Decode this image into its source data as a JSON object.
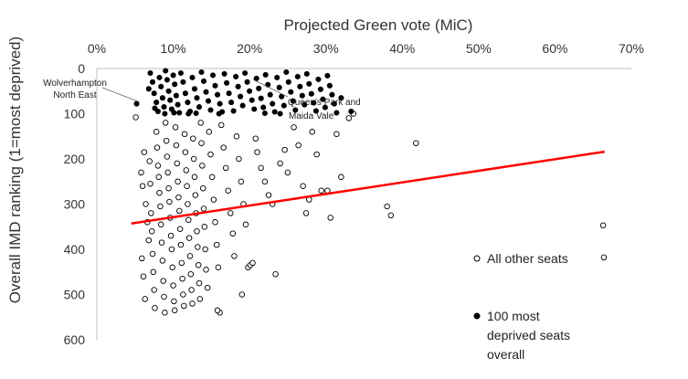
{
  "chart_data": {
    "type": "scatter",
    "title": "Projected Green vote (MiC)",
    "xlabel": "Projected Green vote (MiC)",
    "ylabel": "Overall IMD ranking (1=most deprived)",
    "x_axis_position": "top",
    "y_axis_inverted": true,
    "xlim": [
      0,
      70
    ],
    "ylim": [
      0,
      600
    ],
    "x_ticks": [
      0,
      10,
      20,
      30,
      40,
      50,
      60,
      70
    ],
    "x_tick_labels": [
      "0%",
      "10%",
      "20%",
      "30%",
      "40%",
      "50%",
      "60%",
      "70%"
    ],
    "y_ticks": [
      0,
      100,
      200,
      300,
      400,
      500,
      600
    ],
    "y_tick_labels": [
      "0",
      "100",
      "200",
      "300",
      "400",
      "500",
      "600"
    ],
    "legend_position": "right",
    "series": [
      {
        "name": "All other seats",
        "marker": "open-circle",
        "points": [
          [
            5.1,
            108
          ],
          [
            5.8,
            230
          ],
          [
            6.0,
            260
          ],
          [
            6.2,
            185
          ],
          [
            6.4,
            300
          ],
          [
            6.6,
            340
          ],
          [
            6.8,
            380
          ],
          [
            5.9,
            420
          ],
          [
            6.1,
            460
          ],
          [
            6.3,
            510
          ],
          [
            6.9,
            205
          ],
          [
            7.0,
            255
          ],
          [
            7.1,
            320
          ],
          [
            7.2,
            360
          ],
          [
            7.3,
            410
          ],
          [
            7.4,
            450
          ],
          [
            7.5,
            490
          ],
          [
            7.6,
            530
          ],
          [
            7.8,
            140
          ],
          [
            7.9,
            175
          ],
          [
            8.0,
            215
          ],
          [
            8.1,
            240
          ],
          [
            8.2,
            275
          ],
          [
            8.3,
            305
          ],
          [
            8.4,
            345
          ],
          [
            8.5,
            385
          ],
          [
            8.6,
            425
          ],
          [
            8.7,
            470
          ],
          [
            8.8,
            505
          ],
          [
            8.9,
            540
          ],
          [
            9.0,
            120
          ],
          [
            9.1,
            160
          ],
          [
            9.2,
            195
          ],
          [
            9.3,
            230
          ],
          [
            9.4,
            265
          ],
          [
            9.5,
            295
          ],
          [
            9.6,
            330
          ],
          [
            9.7,
            370
          ],
          [
            9.8,
            400
          ],
          [
            9.9,
            440
          ],
          [
            10.0,
            480
          ],
          [
            10.1,
            515
          ],
          [
            10.2,
            535
          ],
          [
            10.3,
            130
          ],
          [
            10.4,
            170
          ],
          [
            10.5,
            210
          ],
          [
            10.6,
            250
          ],
          [
            10.7,
            285
          ],
          [
            10.8,
            315
          ],
          [
            10.9,
            355
          ],
          [
            11.0,
            390
          ],
          [
            11.1,
            430
          ],
          [
            11.2,
            465
          ],
          [
            11.3,
            500
          ],
          [
            11.4,
            525
          ],
          [
            11.5,
            145
          ],
          [
            11.6,
            185
          ],
          [
            11.7,
            225
          ],
          [
            11.8,
            260
          ],
          [
            11.9,
            300
          ],
          [
            12.0,
            335
          ],
          [
            12.1,
            375
          ],
          [
            12.2,
            415
          ],
          [
            12.3,
            455
          ],
          [
            12.4,
            490
          ],
          [
            12.5,
            520
          ],
          [
            12.6,
            155
          ],
          [
            12.7,
            200
          ],
          [
            12.8,
            240
          ],
          [
            12.9,
            280
          ],
          [
            13.0,
            320
          ],
          [
            13.1,
            360
          ],
          [
            13.2,
            395
          ],
          [
            13.3,
            435
          ],
          [
            13.4,
            475
          ],
          [
            13.5,
            510
          ],
          [
            13.6,
            120
          ],
          [
            13.7,
            165
          ],
          [
            13.8,
            215
          ],
          [
            13.9,
            265
          ],
          [
            14.0,
            310
          ],
          [
            14.1,
            350
          ],
          [
            14.2,
            400
          ],
          [
            14.3,
            445
          ],
          [
            14.5,
            485
          ],
          [
            14.7,
            140
          ],
          [
            14.9,
            190
          ],
          [
            15.1,
            240
          ],
          [
            15.3,
            290
          ],
          [
            15.5,
            340
          ],
          [
            15.7,
            390
          ],
          [
            15.9,
            440
          ],
          [
            16.1,
            540
          ],
          [
            15.8,
            535
          ],
          [
            16.3,
            125
          ],
          [
            16.6,
            175
          ],
          [
            16.9,
            220
          ],
          [
            17.2,
            270
          ],
          [
            17.5,
            320
          ],
          [
            17.8,
            365
          ],
          [
            18.0,
            415
          ],
          [
            18.3,
            150
          ],
          [
            18.6,
            200
          ],
          [
            18.9,
            250
          ],
          [
            19.2,
            300
          ],
          [
            19.5,
            345
          ],
          [
            19.8,
            440
          ],
          [
            20.1,
            435
          ],
          [
            20.4,
            430
          ],
          [
            19.0,
            500
          ],
          [
            20.8,
            155
          ],
          [
            21.0,
            185
          ],
          [
            21.5,
            220
          ],
          [
            22.0,
            250
          ],
          [
            22.5,
            280
          ],
          [
            23.0,
            300
          ],
          [
            23.4,
            455
          ],
          [
            24.0,
            210
          ],
          [
            24.6,
            180
          ],
          [
            25.0,
            230
          ],
          [
            25.8,
            130
          ],
          [
            26.4,
            170
          ],
          [
            27.0,
            260
          ],
          [
            27.4,
            320
          ],
          [
            27.8,
            290
          ],
          [
            28.2,
            140
          ],
          [
            28.8,
            190
          ],
          [
            29.4,
            270
          ],
          [
            30.2,
            270
          ],
          [
            30.6,
            330
          ],
          [
            31.4,
            145
          ],
          [
            32.0,
            240
          ],
          [
            33.0,
            110
          ],
          [
            33.6,
            100
          ],
          [
            38.0,
            305
          ],
          [
            38.5,
            325
          ],
          [
            41.8,
            165
          ],
          [
            66.3,
            347
          ],
          [
            66.4,
            418
          ]
        ]
      },
      {
        "name": "100 most deprived seats overall",
        "marker": "filled-circle",
        "points": [
          [
            5.2,
            78
          ],
          [
            7.0,
            10
          ],
          [
            7.3,
            30
          ],
          [
            7.5,
            55
          ],
          [
            7.8,
            75
          ],
          [
            8.0,
            95
          ],
          [
            8.2,
            20
          ],
          [
            8.4,
            40
          ],
          [
            8.6,
            65
          ],
          [
            8.8,
            85
          ],
          [
            9.0,
            5
          ],
          [
            9.2,
            25
          ],
          [
            9.4,
            50
          ],
          [
            9.6,
            70
          ],
          [
            9.8,
            90
          ],
          [
            10.0,
            15
          ],
          [
            10.2,
            35
          ],
          [
            10.4,
            60
          ],
          [
            10.6,
            80
          ],
          [
            10.8,
            98
          ],
          [
            11.0,
            10
          ],
          [
            11.3,
            30
          ],
          [
            11.6,
            55
          ],
          [
            11.9,
            75
          ],
          [
            12.2,
            95
          ],
          [
            12.5,
            20
          ],
          [
            12.8,
            45
          ],
          [
            13.1,
            65
          ],
          [
            13.4,
            85
          ],
          [
            13.7,
            8
          ],
          [
            14.0,
            28
          ],
          [
            14.3,
            52
          ],
          [
            14.6,
            72
          ],
          [
            14.9,
            92
          ],
          [
            15.2,
            15
          ],
          [
            15.5,
            38
          ],
          [
            15.8,
            58
          ],
          [
            16.1,
            78
          ],
          [
            16.4,
            96
          ],
          [
            16.7,
            12
          ],
          [
            17.0,
            32
          ],
          [
            17.3,
            55
          ],
          [
            17.6,
            75
          ],
          [
            17.9,
            94
          ],
          [
            18.2,
            18
          ],
          [
            18.5,
            40
          ],
          [
            18.8,
            62
          ],
          [
            19.1,
            82
          ],
          [
            19.4,
            10
          ],
          [
            19.7,
            30
          ],
          [
            20.0,
            50
          ],
          [
            20.3,
            70
          ],
          [
            20.6,
            90
          ],
          [
            20.9,
            22
          ],
          [
            21.2,
            44
          ],
          [
            21.5,
            66
          ],
          [
            21.8,
            86
          ],
          [
            22.1,
            14
          ],
          [
            22.4,
            36
          ],
          [
            22.7,
            58
          ],
          [
            23.0,
            78
          ],
          [
            23.3,
            96
          ],
          [
            23.6,
            20
          ],
          [
            23.9,
            42
          ],
          [
            24.2,
            62
          ],
          [
            24.5,
            82
          ],
          [
            24.8,
            8
          ],
          [
            25.1,
            30
          ],
          [
            25.4,
            52
          ],
          [
            25.7,
            72
          ],
          [
            26.0,
            92
          ],
          [
            26.3,
            18
          ],
          [
            26.6,
            40
          ],
          [
            26.9,
            60
          ],
          [
            27.2,
            80
          ],
          [
            27.5,
            12
          ],
          [
            27.8,
            34
          ],
          [
            28.1,
            56
          ],
          [
            28.4,
            76
          ],
          [
            28.7,
            94
          ],
          [
            29.0,
            24
          ],
          [
            29.3,
            46
          ],
          [
            29.6,
            68
          ],
          [
            29.9,
            86
          ],
          [
            30.2,
            16
          ],
          [
            30.5,
            38
          ],
          [
            30.8,
            58
          ],
          [
            31.1,
            78
          ],
          [
            31.4,
            98
          ],
          [
            32.0,
            65
          ],
          [
            33.3,
            95
          ],
          [
            6.8,
            45
          ],
          [
            7.6,
            88
          ],
          [
            8.9,
            100
          ],
          [
            10.1,
            98
          ],
          [
            12.0,
            100
          ],
          [
            13.0,
            99
          ],
          [
            16.0,
            100
          ],
          [
            22.0,
            99
          ],
          [
            24.0,
            100
          ]
        ]
      }
    ],
    "trendline": {
      "series": "All other seats",
      "type": "linear",
      "color": "#ff0000",
      "from": [
        4.5,
        343
      ],
      "to": [
        66.5,
        184
      ]
    },
    "annotations": [
      {
        "name": "wolverhampton-north-east",
        "lines": [
          "Wolverhampton",
          "North East"
        ],
        "point": [
          5.2,
          78
        ]
      },
      {
        "name": "queens-park-and-maida-vale",
        "lines": [
          "Queen's Park and",
          "Maida Vale"
        ],
        "point": [
          20.5,
          25
        ]
      }
    ]
  },
  "legend": {
    "other_label": "All other seats",
    "deprived_label_line1": "100 most",
    "deprived_label_line2": "deprived seats",
    "deprived_label_line3": "overall"
  },
  "colors": {
    "trend": "#ff0000",
    "marker_stroke": "#000000",
    "marker_fill_open": "#ffffff",
    "marker_fill_filled": "#000000",
    "axis": "#bfbfbf",
    "text": "#333333"
  }
}
